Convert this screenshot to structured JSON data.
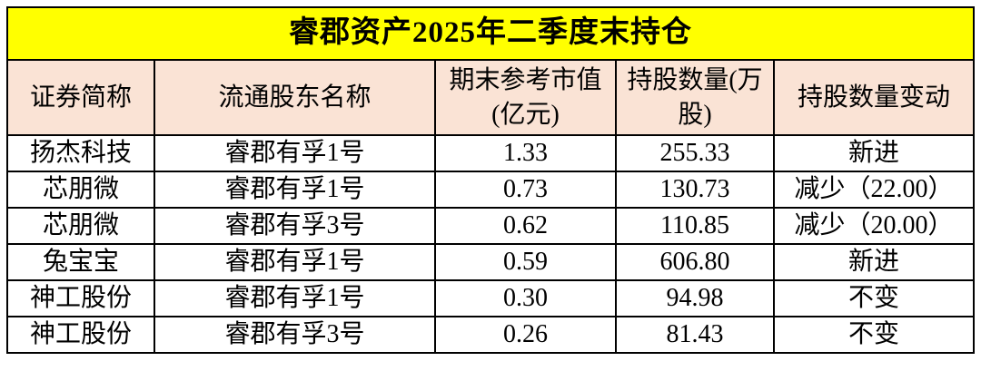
{
  "colors": {
    "title_bg": "#FFFF00",
    "header_bg": "#FAE3D5",
    "row_bg": "#FFFFFF",
    "border": "#000000",
    "text": "#000000"
  },
  "chart_data": {
    "type": "table",
    "title": "睿郡资产2025年二季度末持仓",
    "columns": [
      "证券简称",
      "流通股东名称",
      "期末参考市值(亿元)",
      "持股数量(万股)",
      "持股数量变动"
    ],
    "rows": [
      [
        "扬杰科技",
        "睿郡有孚1号",
        "1.33",
        "255.33",
        "新进"
      ],
      [
        "芯朋微",
        "睿郡有孚1号",
        "0.73",
        "130.73",
        "减少（22.00）"
      ],
      [
        "芯朋微",
        "睿郡有孚3号",
        "0.62",
        "110.85",
        "减少（20.00）"
      ],
      [
        "兔宝宝",
        "睿郡有孚1号",
        "0.59",
        "606.80",
        "新进"
      ],
      [
        "神工股份",
        "睿郡有孚1号",
        "0.30",
        "94.98",
        "不变"
      ],
      [
        "神工股份",
        "睿郡有孚3号",
        "0.26",
        "81.43",
        "不变"
      ]
    ]
  }
}
